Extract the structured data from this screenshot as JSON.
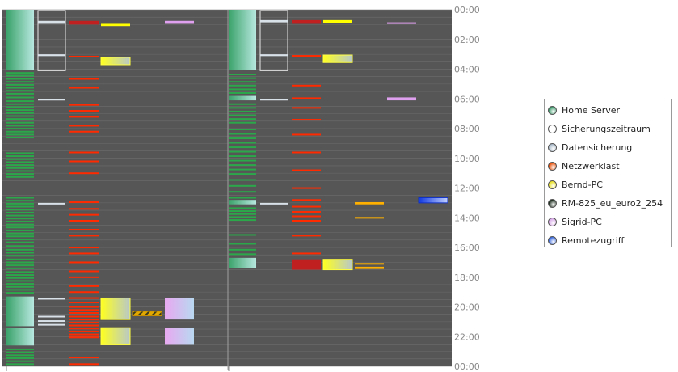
{
  "chart_data": {
    "type": "timeline",
    "title": "",
    "xlabel": "",
    "ylabel": "",
    "y_axis": {
      "min_hours": 0,
      "max_hours": 24,
      "ticks": [
        "00:00",
        "02:00",
        "04:00",
        "06:00",
        "08:00",
        "10:00",
        "12:00",
        "14:00",
        "16:00",
        "18:00",
        "20:00",
        "22:00",
        "00:00"
      ]
    },
    "grid": true,
    "legend_position": "right",
    "days": 2,
    "series": [
      {
        "name": "Home Server",
        "key": "home",
        "column": 0,
        "color": "#2aa84a",
        "gradient": [
          "#3aa36a",
          "#b8e8e0"
        ],
        "intervals": [
          [
            [
              0.0,
              4.05
            ],
            [
              4.2,
              4.25
            ],
            [
              4.38,
              4.45
            ],
            [
              4.6,
              4.66
            ],
            [
              4.8,
              4.86
            ],
            [
              5.0,
              5.06
            ],
            [
              5.2,
              5.26
            ],
            [
              5.4,
              5.46
            ],
            [
              5.6,
              5.66
            ],
            [
              5.85,
              5.95
            ],
            [
              6.1,
              6.16
            ],
            [
              6.3,
              6.36
            ],
            [
              6.5,
              6.56
            ],
            [
              6.7,
              6.76
            ],
            [
              6.9,
              6.96
            ],
            [
              7.1,
              7.16
            ],
            [
              7.3,
              7.36
            ],
            [
              7.55,
              7.61
            ],
            [
              7.75,
              7.81
            ],
            [
              7.95,
              8.01
            ],
            [
              8.15,
              8.21
            ],
            [
              8.35,
              8.41
            ],
            [
              8.55,
              8.61
            ],
            [
              9.6,
              9.66
            ],
            [
              9.8,
              9.86
            ],
            [
              10.0,
              10.06
            ],
            [
              10.2,
              10.26
            ],
            [
              10.4,
              10.46
            ],
            [
              10.6,
              10.66
            ],
            [
              10.8,
              10.86
            ],
            [
              11.0,
              11.06
            ],
            [
              11.2,
              11.26
            ],
            [
              12.6,
              12.66
            ],
            [
              12.8,
              12.86
            ],
            [
              13.0,
              13.06
            ],
            [
              13.2,
              13.26
            ],
            [
              13.4,
              13.46
            ],
            [
              13.6,
              13.66
            ],
            [
              13.8,
              13.86
            ],
            [
              14.0,
              14.06
            ],
            [
              14.2,
              14.26
            ],
            [
              14.4,
              14.46
            ],
            [
              14.6,
              14.66
            ],
            [
              14.8,
              14.86
            ],
            [
              15.0,
              15.06
            ],
            [
              15.2,
              15.26
            ],
            [
              15.4,
              15.46
            ],
            [
              15.6,
              15.66
            ],
            [
              15.85,
              15.95
            ],
            [
              16.1,
              16.16
            ],
            [
              16.3,
              16.36
            ],
            [
              16.5,
              16.62
            ],
            [
              16.75,
              16.81
            ],
            [
              16.95,
              17.01
            ],
            [
              17.15,
              17.21
            ],
            [
              17.35,
              17.41
            ],
            [
              17.6,
              17.66
            ],
            [
              17.8,
              17.86
            ],
            [
              18.0,
              18.06
            ],
            [
              18.2,
              18.26
            ],
            [
              18.4,
              18.46
            ],
            [
              18.6,
              18.66
            ],
            [
              18.8,
              18.86
            ],
            [
              19.0,
              19.06
            ],
            [
              19.3,
              21.3
            ],
            [
              21.4,
              22.6
            ],
            [
              22.8,
              22.86
            ],
            [
              23.0,
              23.06
            ],
            [
              23.2,
              23.26
            ],
            [
              23.4,
              23.46
            ],
            [
              23.6,
              23.66
            ],
            [
              23.8,
              23.86
            ]
          ],
          [
            [
              0.0,
              4.05
            ],
            [
              4.3,
              4.36
            ],
            [
              4.55,
              4.61
            ],
            [
              4.8,
              4.86
            ],
            [
              5.05,
              5.11
            ],
            [
              5.3,
              5.36
            ],
            [
              5.55,
              5.61
            ],
            [
              5.8,
              6.1
            ],
            [
              6.3,
              6.36
            ],
            [
              6.55,
              6.61
            ],
            [
              6.8,
              6.86
            ],
            [
              7.05,
              7.11
            ],
            [
              7.3,
              7.36
            ],
            [
              7.55,
              7.61
            ],
            [
              8.0,
              8.06
            ],
            [
              8.3,
              8.36
            ],
            [
              8.6,
              8.66
            ],
            [
              8.9,
              8.96
            ],
            [
              9.2,
              9.26
            ],
            [
              9.5,
              9.56
            ],
            [
              9.8,
              9.86
            ],
            [
              10.1,
              10.16
            ],
            [
              10.4,
              10.46
            ],
            [
              10.7,
              10.76
            ],
            [
              11.0,
              11.06
            ],
            [
              11.4,
              11.46
            ],
            [
              11.8,
              11.86
            ],
            [
              12.2,
              12.26
            ],
            [
              12.6,
              12.66
            ],
            [
              12.8,
              13.1
            ],
            [
              13.3,
              13.36
            ],
            [
              13.5,
              13.56
            ],
            [
              13.7,
              13.76
            ],
            [
              13.9,
              13.96
            ],
            [
              14.1,
              14.16
            ],
            [
              15.1,
              15.16
            ],
            [
              15.7,
              15.76
            ],
            [
              16.1,
              16.16
            ],
            [
              16.4,
              16.46
            ],
            [
              16.7,
              17.4
            ]
          ]
        ]
      },
      {
        "name": "Sicherungszeitraum",
        "key": "window",
        "column": 1,
        "color": "#ffffff",
        "intervals": [
          [
            [
              0.05,
              4.1
            ]
          ],
          [
            [
              0.05,
              4.1
            ]
          ]
        ]
      },
      {
        "name": "Datensicherung",
        "key": "backup",
        "column": 1,
        "color": "#d8e0e8",
        "intervals": [
          [
            [
              0.75,
              0.95
            ],
            [
              3.0,
              3.12
            ],
            [
              6.0,
              6.06
            ],
            [
              13.0,
              13.06
            ],
            [
              19.4,
              19.5
            ],
            [
              20.6,
              20.68
            ],
            [
              20.9,
              20.98
            ],
            [
              21.15,
              21.22
            ]
          ],
          [
            [
              0.7,
              0.85
            ],
            [
              3.0,
              3.12
            ],
            [
              6.0,
              6.06
            ],
            [
              13.0,
              13.06
            ]
          ]
        ]
      },
      {
        "name": "Netzwerklast",
        "key": "net",
        "column": 2,
        "color": "#ff2a00",
        "intervals": [
          [
            [
              0.75,
              1.0
            ],
            [
              3.1,
              3.16
            ],
            [
              4.6,
              4.66
            ],
            [
              5.2,
              5.26
            ],
            [
              6.35,
              6.41
            ],
            [
              6.75,
              6.81
            ],
            [
              7.15,
              7.21
            ],
            [
              7.75,
              7.81
            ],
            [
              8.15,
              8.21
            ],
            [
              9.55,
              9.61
            ],
            [
              10.15,
              10.21
            ],
            [
              10.95,
              11.01
            ],
            [
              12.9,
              12.96
            ],
            [
              13.35,
              13.41
            ],
            [
              13.75,
              13.81
            ],
            [
              14.15,
              14.21
            ],
            [
              14.75,
              14.81
            ],
            [
              15.15,
              15.21
            ],
            [
              15.95,
              16.01
            ],
            [
              16.35,
              16.41
            ],
            [
              16.95,
              17.01
            ],
            [
              17.55,
              17.61
            ],
            [
              17.95,
              18.01
            ],
            [
              18.55,
              18.61
            ],
            [
              18.95,
              19.01
            ],
            [
              19.35,
              19.45
            ],
            [
              19.65,
              19.71
            ],
            [
              19.95,
              20.01
            ],
            [
              20.15,
              20.21
            ],
            [
              20.35,
              20.41
            ],
            [
              20.6,
              20.66
            ],
            [
              20.8,
              20.86
            ],
            [
              21.0,
              21.06
            ],
            [
              21.2,
              21.26
            ],
            [
              21.4,
              21.46
            ],
            [
              21.6,
              21.66
            ],
            [
              21.8,
              21.86
            ],
            [
              22.0,
              22.06
            ],
            [
              23.35,
              23.41
            ],
            [
              23.8,
              23.86
            ]
          ],
          [
            [
              0.7,
              0.95
            ],
            [
              3.05,
              3.11
            ],
            [
              5.05,
              5.11
            ],
            [
              5.9,
              5.96
            ],
            [
              6.55,
              6.61
            ],
            [
              7.35,
              7.41
            ],
            [
              8.35,
              8.41
            ],
            [
              9.55,
              9.61
            ],
            [
              10.75,
              10.81
            ],
            [
              11.95,
              12.01
            ],
            [
              12.75,
              12.81
            ],
            [
              13.2,
              13.26
            ],
            [
              13.55,
              13.61
            ],
            [
              13.85,
              13.91
            ],
            [
              14.15,
              14.21
            ],
            [
              15.15,
              15.21
            ],
            [
              16.35,
              16.41
            ],
            [
              16.8,
              17.5
            ]
          ]
        ]
      },
      {
        "name": "Bernd-PC",
        "key": "bernd",
        "column": 3,
        "color": "#ffff00",
        "gradient": [
          "#ffff20",
          "#b8c8c8"
        ],
        "intervals": [
          [
            [
              0.95,
              1.1
            ],
            [
              3.2,
              3.7
            ],
            [
              19.4,
              20.85
            ],
            [
              21.4,
              22.5
            ]
          ],
          [
            [
              0.7,
              0.9
            ],
            [
              3.05,
              3.55
            ],
            [
              16.8,
              17.5
            ]
          ]
        ]
      },
      {
        "name": "RM-825_eu_euro2_254",
        "key": "rm",
        "column": 4,
        "color": "#ffb000",
        "intervals": [
          [
            [
              20.3,
              20.6
            ]
          ],
          [
            [
              12.95,
              13.1
            ],
            [
              13.95,
              14.05
            ],
            [
              17.05,
              17.15
            ],
            [
              17.3,
              17.45
            ]
          ]
        ]
      },
      {
        "name": "Sigrid-PC",
        "key": "sigrid",
        "column": 5,
        "color": "#e0a0f0",
        "gradient": [
          "#e8a8f0",
          "#b8d8f0"
        ],
        "intervals": [
          [
            [
              0.75,
              0.95
            ],
            [
              19.4,
              20.85
            ],
            [
              21.4,
              22.5
            ]
          ],
          [
            [
              0.85,
              0.95
            ],
            [
              5.9,
              6.1
            ]
          ]
        ]
      },
      {
        "name": "Remotezugriff",
        "key": "remote",
        "column": 6,
        "color": "#2050f0",
        "gradient": [
          "#1038e0",
          "#c0d0ff"
        ],
        "intervals": [
          [],
          [
            [
              12.65,
              13.0
            ]
          ]
        ]
      }
    ]
  },
  "colors": {
    "plot_bg": "#565656",
    "grid": "#6e6e6e",
    "separator": "#a0a0a0",
    "tick_text": "#888888"
  },
  "legend": [
    {
      "label": "Home Server",
      "color": "#3a9a6a"
    },
    {
      "label": "Sicherungszeitraum",
      "color": "#ffffff"
    },
    {
      "label": "Datensicherung",
      "color": "#a8b8c8"
    },
    {
      "label": "Netzwerklast",
      "color": "#e84a00"
    },
    {
      "label": "Bernd-PC",
      "color": "#e8e020"
    },
    {
      "label": "RM-825_eu_euro2_254",
      "color": "#1a2a1a"
    },
    {
      "label": "Sigrid-PC",
      "color": "#d8a8e8"
    },
    {
      "label": "Remotezugriff",
      "color": "#3a6ae0"
    }
  ]
}
